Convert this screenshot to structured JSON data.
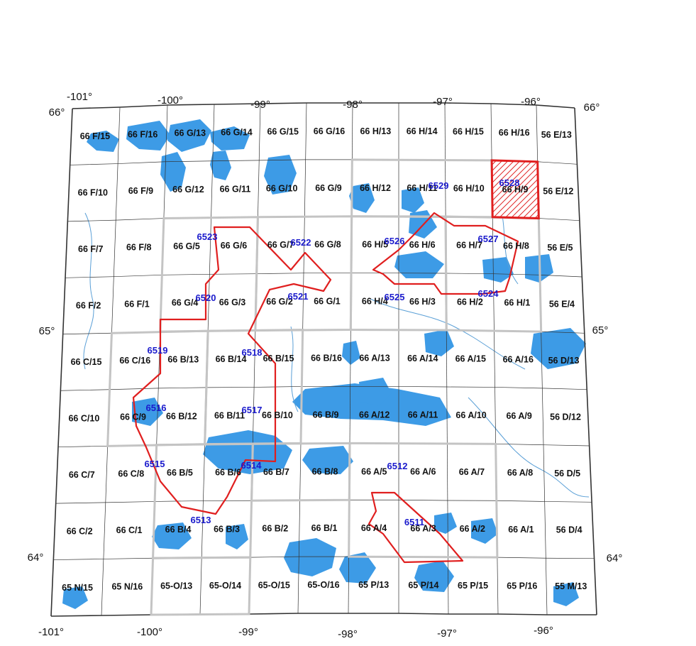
{
  "map": {
    "top_longitudes": [
      "-101°",
      "-100°",
      "-99°",
      "-98°",
      "-97°",
      "-96°"
    ],
    "bottom_longitudes": [
      "-101°",
      "-100°",
      "-99°",
      "-98°",
      "-97°",
      "-96°"
    ],
    "left_latitudes": [
      "66°",
      "65°",
      "64°"
    ],
    "right_latitudes": [
      "66°",
      "65°",
      "64°"
    ],
    "nts_rows": [
      [
        "66 F/15",
        "66 F/16",
        "66 G/13",
        "66 G/14",
        "66 G/15",
        "66 G/16",
        "66 H/13",
        "66 H/14",
        "66 H/15",
        "66 H/16",
        "56 E/13"
      ],
      [
        "66 F/10",
        "66 F/9",
        "66 G/12",
        "66 G/11",
        "66 G/10",
        "66 G/9",
        "66 H/12",
        "66 H/11",
        "66 H/10",
        "66 H/9",
        "56 E/12"
      ],
      [
        "66 F/7",
        "66 F/8",
        "66 G/5",
        "66 G/6",
        "66 G/7",
        "66 G/8",
        "66 H/5",
        "66 H/6",
        "66 H/7",
        "66 H/8",
        "56 E/5"
      ],
      [
        "66 F/2",
        "66 F/1",
        "66 G/4",
        "66 G/3",
        "66 G/2",
        "66 G/1",
        "66 H/4",
        "66 H/3",
        "66 H/2",
        "66 H/1",
        "56 E/4"
      ],
      [
        "66 C/15",
        "66 C/16",
        "66 B/13",
        "66 B/14",
        "66 B/15",
        "66 B/16",
        "66 A/13",
        "66 A/14",
        "66 A/15",
        "66 A/16",
        "56 D/13"
      ],
      [
        "66 C/10",
        "66 C/9",
        "66 B/12",
        "66 B/11",
        "66 B/10",
        "66 B/9",
        "66 A/12",
        "66 A/11",
        "66 A/10",
        "66 A/9",
        "56 D/12"
      ],
      [
        "66 C/7",
        "66 C/8",
        "66 B/5",
        "66 B/6",
        "66 B/7",
        "66 B/8",
        "66 A/5",
        "66 A/6",
        "66 A/7",
        "66 A/8",
        "56 D/5"
      ],
      [
        "66 C/2",
        "66 C/1",
        "66 B/4",
        "66 B/3",
        "66 B/2",
        "66 B/1",
        "66 A/4",
        "66 A/3",
        "66 A/2",
        "66 A/1",
        "56 D/4"
      ],
      [
        "65 N/15",
        "65 N/16",
        "65-O/13",
        "65-O/14",
        "65-O/15",
        "65-O/16",
        "65 P/13",
        "65 P/14",
        "65 P/15",
        "65 P/16",
        "55 M/13"
      ]
    ],
    "projects": [
      {
        "id": "6528",
        "sheet": "66 H/9",
        "highlighted": true
      },
      {
        "id": "6529"
      },
      {
        "id": "6523"
      },
      {
        "id": "6522"
      },
      {
        "id": "6526"
      },
      {
        "id": "6527"
      },
      {
        "id": "6520"
      },
      {
        "id": "6521"
      },
      {
        "id": "6525"
      },
      {
        "id": "6524"
      },
      {
        "id": "6519"
      },
      {
        "id": "6518"
      },
      {
        "id": "6516"
      },
      {
        "id": "6517"
      },
      {
        "id": "6515"
      },
      {
        "id": "6514"
      },
      {
        "id": "6512"
      },
      {
        "id": "6513"
      },
      {
        "id": "6511"
      }
    ],
    "colors": {
      "water": "#3d9be6",
      "river": "#5a9fd6",
      "grid_line": "#333333",
      "project_block": "#c4c4c4",
      "project_outline": "#e01f1f",
      "project_label": "#1a1acc",
      "highlight_fill": "#e01f1f"
    },
    "icons": [
      "hatch-pattern"
    ]
  }
}
